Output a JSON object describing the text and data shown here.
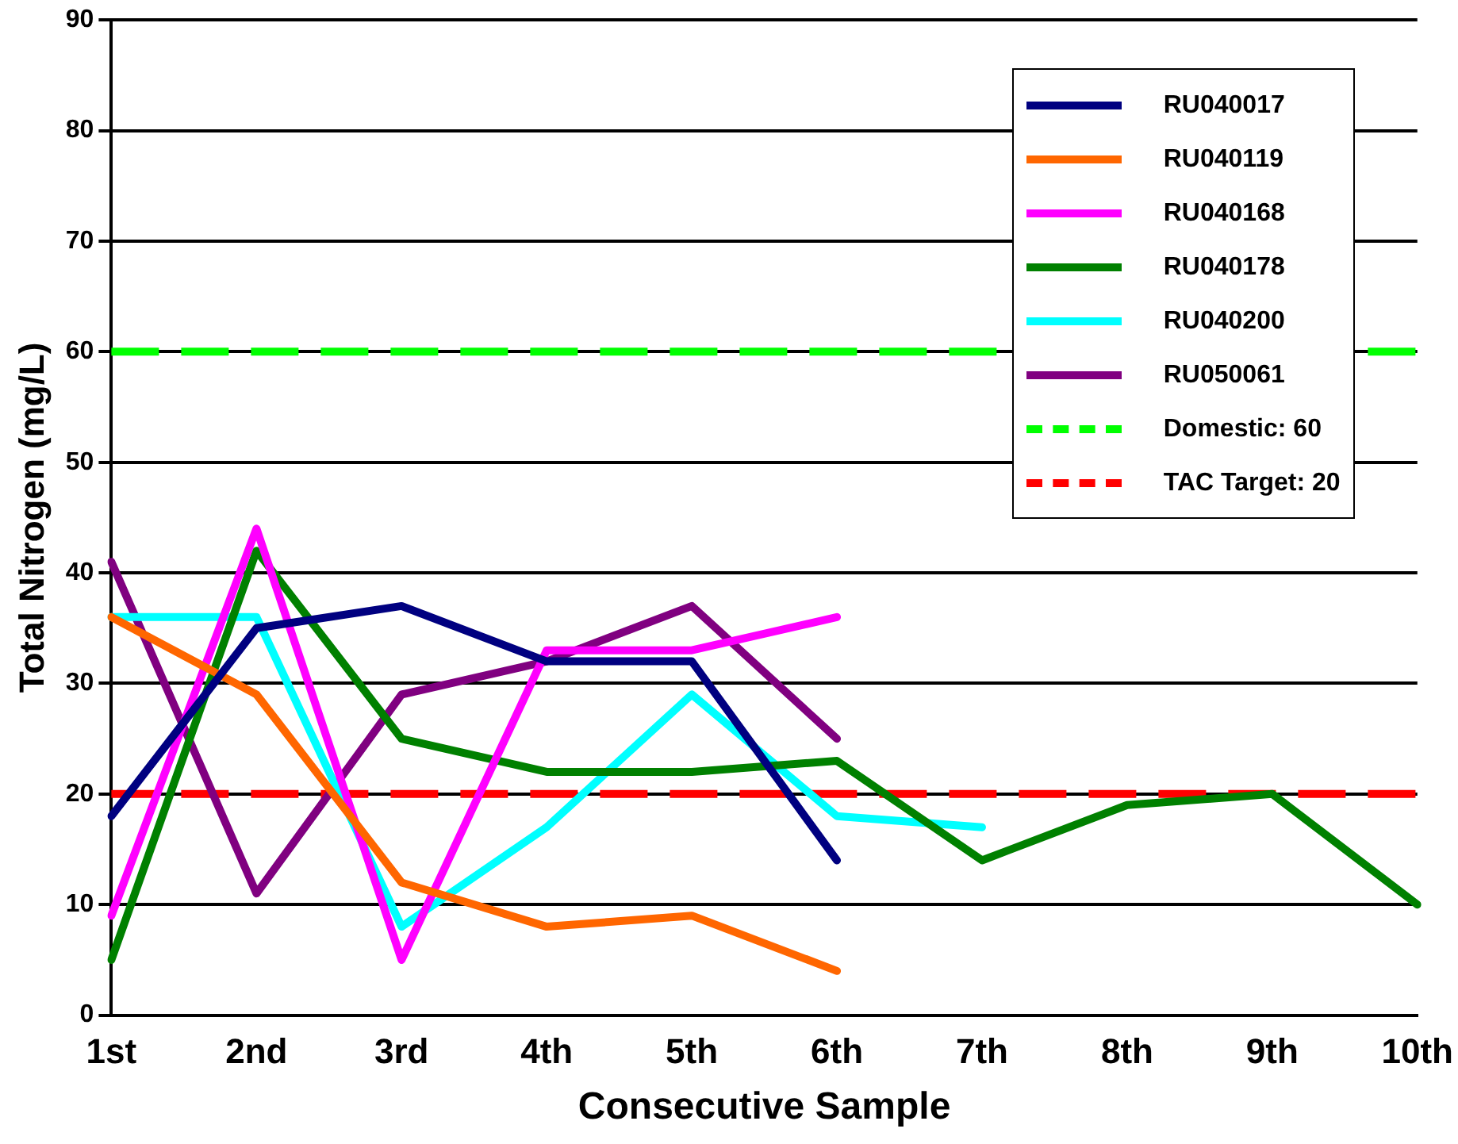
{
  "chart_data": {
    "type": "line",
    "xlabel": "Consecutive Sample",
    "ylabel": "Total Nitrogen (mg/L)",
    "categories": [
      "1st",
      "2nd",
      "3rd",
      "4th",
      "5th",
      "6th",
      "7th",
      "8th",
      "9th",
      "10th"
    ],
    "ylim": [
      0,
      90
    ],
    "yticks": [
      0,
      10,
      20,
      30,
      40,
      50,
      60,
      70,
      80,
      90
    ],
    "grid": "y",
    "legend": "top right",
    "marker": "none",
    "line_style": "solid",
    "series": [
      {
        "name": "RU040017",
        "color": "#000080",
        "values": [
          18,
          35,
          37,
          32,
          32,
          14,
          null,
          null,
          null,
          null
        ]
      },
      {
        "name": "RU040119",
        "color": "#ff6600",
        "values": [
          36,
          29,
          12,
          8,
          9,
          4,
          null,
          null,
          null,
          null
        ]
      },
      {
        "name": "RU040168",
        "color": "#ff00ff",
        "values": [
          9,
          44,
          5,
          33,
          33,
          36,
          null,
          null,
          null,
          null
        ]
      },
      {
        "name": "RU040178",
        "color": "#008000",
        "values": [
          5,
          42,
          25,
          22,
          22,
          23,
          14,
          19,
          20,
          10
        ]
      },
      {
        "name": "RU040200",
        "color": "#00ffff",
        "values": [
          36,
          36,
          8,
          17,
          29,
          18,
          17,
          null,
          null,
          null
        ]
      },
      {
        "name": "RU050061",
        "color": "#800080",
        "values": [
          41,
          11,
          29,
          32,
          37,
          25,
          null,
          null,
          null,
          null
        ]
      }
    ],
    "ref_lines": [
      {
        "axis": "y",
        "value": 60,
        "label": "Domestic: 60",
        "color": "#00ff00",
        "line_style": "dashed"
      },
      {
        "axis": "y",
        "value": 20,
        "label": "TAC Target: 20",
        "color": "#ff0000",
        "line_style": "dashed"
      }
    ]
  }
}
